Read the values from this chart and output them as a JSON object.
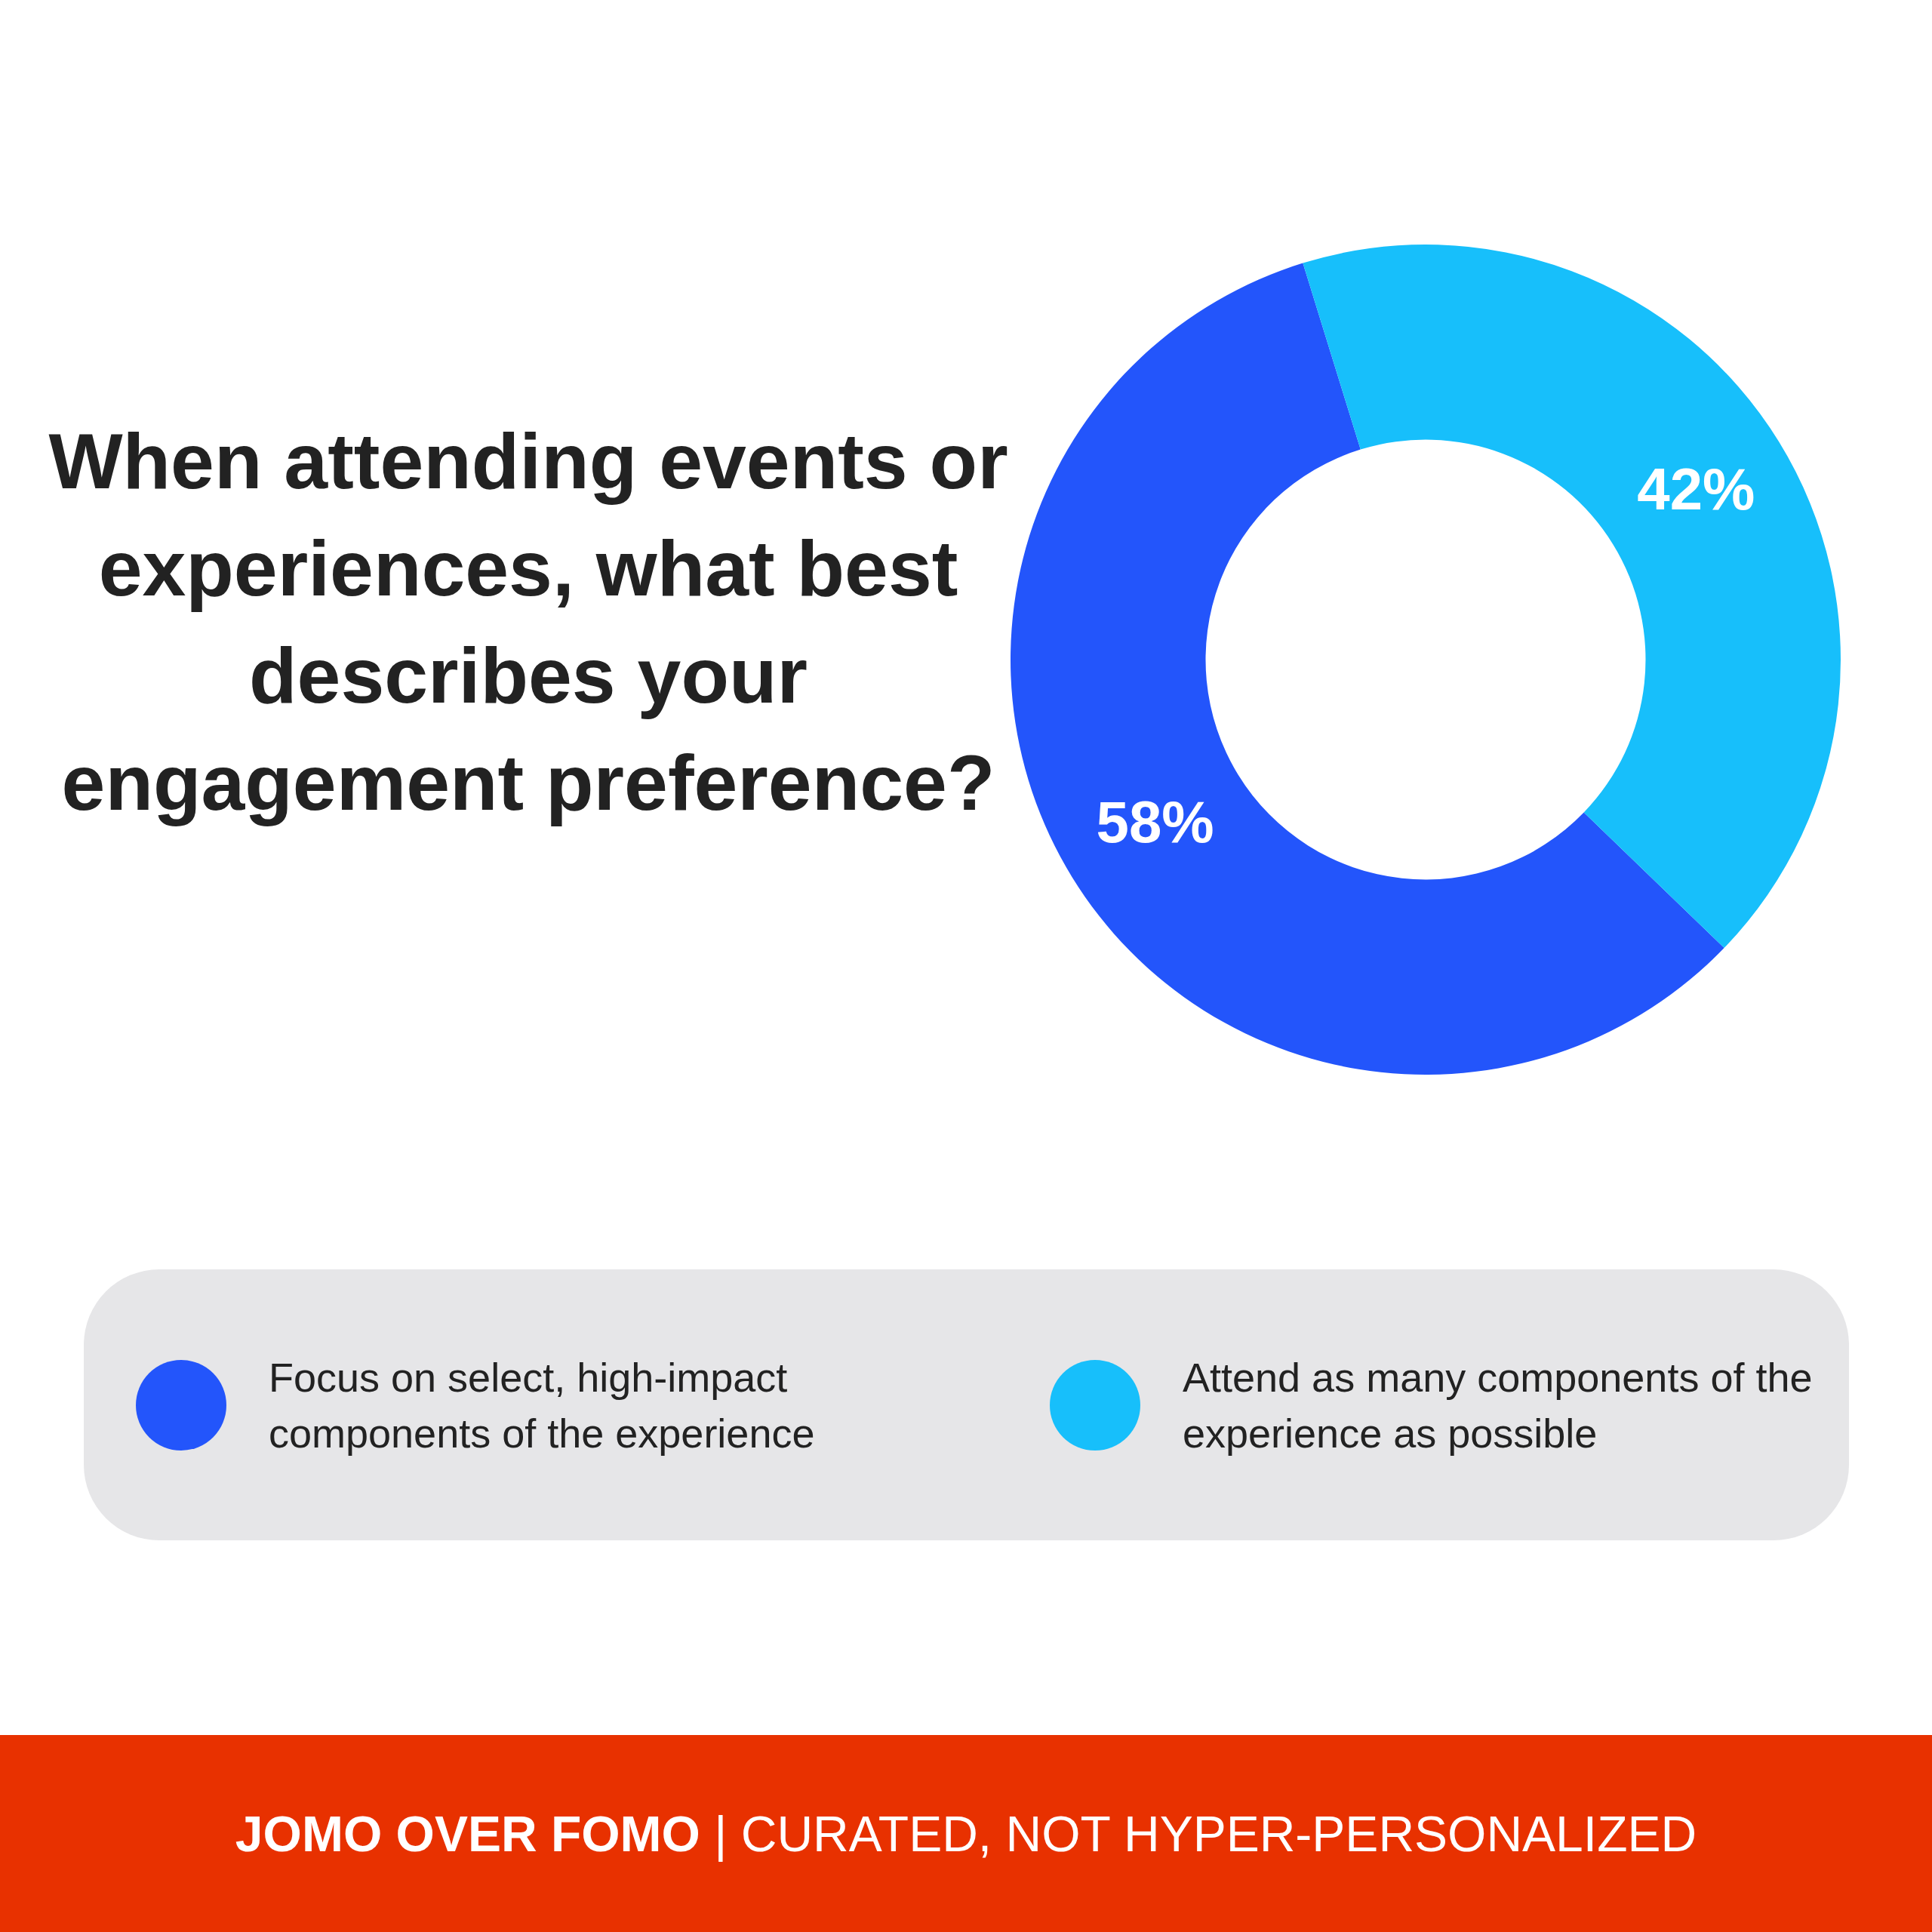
{
  "chart_data": {
    "type": "donut",
    "title": "When attending events or experiences, what best describes your engagement preference?",
    "categories": [
      "Focus on select, high-impact components of the experience",
      "Attend as many components of the experience as possible"
    ],
    "values": [
      58,
      42
    ],
    "colors": [
      "#2355fb",
      "#17bffb"
    ],
    "value_labels": [
      "58%",
      "42%"
    ],
    "legend": "bottom",
    "annotations": [
      "JOMO OVER FOMO | CURATED, NOT HYPER-PERSONALIZED"
    ]
  }
}
